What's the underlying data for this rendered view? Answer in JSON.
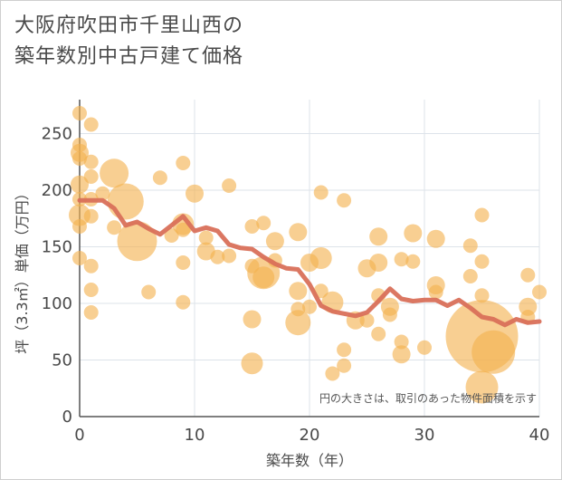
{
  "chart_data": {
    "type": "scatter",
    "title_lines": [
      "大阪府吹田市千里山西の",
      "築年数別中古戸建て価格"
    ],
    "xlabel": "築年数（年）",
    "ylabel": "坪（3.3㎡）単価（万円）",
    "xlim": [
      0,
      40
    ],
    "ylim": [
      0,
      280
    ],
    "x_ticks": [
      0,
      10,
      20,
      30,
      40
    ],
    "y_ticks": [
      0,
      50,
      100,
      150,
      200,
      250
    ],
    "grid": true,
    "note": "円の大きさは、取引のあった物件面積を示す",
    "colors": {
      "bubble": "#f3b24f",
      "trend": "#d9705a",
      "grid": "#dde3ea",
      "text": "#4a4a4a"
    },
    "series": [
      {
        "type": "bubble",
        "points": [
          {
            "x": 0,
            "y": 268,
            "s": 8
          },
          {
            "x": 0,
            "y": 240,
            "s": 8
          },
          {
            "x": 0,
            "y": 233,
            "s": 10
          },
          {
            "x": 0,
            "y": 228,
            "s": 8
          },
          {
            "x": 0,
            "y": 205,
            "s": 10
          },
          {
            "x": 0,
            "y": 192,
            "s": 8
          },
          {
            "x": 0,
            "y": 178,
            "s": 12
          },
          {
            "x": 0,
            "y": 168,
            "s": 8
          },
          {
            "x": 0,
            "y": 140,
            "s": 8
          },
          {
            "x": 1,
            "y": 258,
            "s": 8
          },
          {
            "x": 1,
            "y": 225,
            "s": 8
          },
          {
            "x": 1,
            "y": 212,
            "s": 8
          },
          {
            "x": 1,
            "y": 192,
            "s": 8
          },
          {
            "x": 1,
            "y": 177,
            "s": 8
          },
          {
            "x": 1,
            "y": 133,
            "s": 8
          },
          {
            "x": 1,
            "y": 112,
            "s": 8
          },
          {
            "x": 1,
            "y": 92,
            "s": 8
          },
          {
            "x": 2,
            "y": 197,
            "s": 8
          },
          {
            "x": 3,
            "y": 215,
            "s": 16
          },
          {
            "x": 3,
            "y": 167,
            "s": 8
          },
          {
            "x": 4,
            "y": 190,
            "s": 20
          },
          {
            "x": 5,
            "y": 155,
            "s": 22
          },
          {
            "x": 6,
            "y": 110,
            "s": 8
          },
          {
            "x": 7,
            "y": 211,
            "s": 8
          },
          {
            "x": 8,
            "y": 160,
            "s": 8
          },
          {
            "x": 9,
            "y": 224,
            "s": 8
          },
          {
            "x": 9,
            "y": 170,
            "s": 12
          },
          {
            "x": 9,
            "y": 165,
            "s": 8
          },
          {
            "x": 9,
            "y": 136,
            "s": 8
          },
          {
            "x": 9,
            "y": 101,
            "s": 8
          },
          {
            "x": 10,
            "y": 197,
            "s": 10
          },
          {
            "x": 11,
            "y": 146,
            "s": 10
          },
          {
            "x": 11,
            "y": 158,
            "s": 8
          },
          {
            "x": 12,
            "y": 141,
            "s": 8
          },
          {
            "x": 13,
            "y": 204,
            "s": 8
          },
          {
            "x": 13,
            "y": 142,
            "s": 8
          },
          {
            "x": 15,
            "y": 168,
            "s": 8
          },
          {
            "x": 15,
            "y": 133,
            "s": 8
          },
          {
            "x": 15,
            "y": 86,
            "s": 10
          },
          {
            "x": 15,
            "y": 47,
            "s": 12
          },
          {
            "x": 16,
            "y": 171,
            "s": 8
          },
          {
            "x": 16,
            "y": 127,
            "s": 18
          },
          {
            "x": 16,
            "y": 123,
            "s": 12
          },
          {
            "x": 17,
            "y": 155,
            "s": 10
          },
          {
            "x": 17,
            "y": 138,
            "s": 8
          },
          {
            "x": 19,
            "y": 163,
            "s": 10
          },
          {
            "x": 19,
            "y": 111,
            "s": 10
          },
          {
            "x": 19,
            "y": 95,
            "s": 8
          },
          {
            "x": 19,
            "y": 83,
            "s": 14
          },
          {
            "x": 20,
            "y": 136,
            "s": 10
          },
          {
            "x": 20,
            "y": 97,
            "s": 8
          },
          {
            "x": 21,
            "y": 198,
            "s": 8
          },
          {
            "x": 21,
            "y": 140,
            "s": 12
          },
          {
            "x": 21,
            "y": 111,
            "s": 8
          },
          {
            "x": 22,
            "y": 101,
            "s": 12
          },
          {
            "x": 22,
            "y": 38,
            "s": 8
          },
          {
            "x": 23,
            "y": 191,
            "s": 8
          },
          {
            "x": 23,
            "y": 59,
            "s": 8
          },
          {
            "x": 23,
            "y": 45,
            "s": 8
          },
          {
            "x": 24,
            "y": 85,
            "s": 10
          },
          {
            "x": 25,
            "y": 131,
            "s": 10
          },
          {
            "x": 25,
            "y": 85,
            "s": 8
          },
          {
            "x": 26,
            "y": 159,
            "s": 10
          },
          {
            "x": 26,
            "y": 136,
            "s": 10
          },
          {
            "x": 26,
            "y": 107,
            "s": 8
          },
          {
            "x": 26,
            "y": 73,
            "s": 8
          },
          {
            "x": 27,
            "y": 97,
            "s": 10
          },
          {
            "x": 27,
            "y": 90,
            "s": 8
          },
          {
            "x": 28,
            "y": 139,
            "s": 8
          },
          {
            "x": 28,
            "y": 66,
            "s": 8
          },
          {
            "x": 28,
            "y": 55,
            "s": 10
          },
          {
            "x": 29,
            "y": 162,
            "s": 10
          },
          {
            "x": 29,
            "y": 137,
            "s": 8
          },
          {
            "x": 30,
            "y": 61,
            "s": 8
          },
          {
            "x": 31,
            "y": 157,
            "s": 10
          },
          {
            "x": 31,
            "y": 116,
            "s": 10
          },
          {
            "x": 31,
            "y": 110,
            "s": 8
          },
          {
            "x": 34,
            "y": 151,
            "s": 8
          },
          {
            "x": 34,
            "y": 124,
            "s": 8
          },
          {
            "x": 35,
            "y": 178,
            "s": 8
          },
          {
            "x": 35,
            "y": 137,
            "s": 8
          },
          {
            "x": 35,
            "y": 107,
            "s": 8
          },
          {
            "x": 35,
            "y": 71,
            "s": 40
          },
          {
            "x": 35,
            "y": 26,
            "s": 18
          },
          {
            "x": 36,
            "y": 57,
            "s": 24
          },
          {
            "x": 39,
            "y": 125,
            "s": 8
          },
          {
            "x": 39,
            "y": 97,
            "s": 10
          },
          {
            "x": 39,
            "y": 88,
            "s": 8
          },
          {
            "x": 40,
            "y": 110,
            "s": 8
          }
        ]
      },
      {
        "type": "line",
        "x": [
          0,
          1,
          2,
          3,
          4,
          5,
          6,
          7,
          8,
          9,
          10,
          11,
          12,
          13,
          14,
          15,
          16,
          17,
          18,
          19,
          20,
          21,
          22,
          23,
          24,
          25,
          26,
          27,
          28,
          29,
          30,
          31,
          32,
          33,
          34,
          35,
          36,
          37,
          38,
          39,
          40
        ],
        "y": [
          191,
          191,
          191,
          184,
          169,
          172,
          166,
          161,
          169,
          177,
          164,
          167,
          164,
          152,
          149,
          148,
          141,
          135,
          131,
          130,
          117,
          98,
          93,
          91,
          89,
          92,
          102,
          113,
          104,
          102,
          103,
          103,
          98,
          103,
          96,
          88,
          86,
          81,
          86,
          83,
          84
        ]
      }
    ]
  }
}
